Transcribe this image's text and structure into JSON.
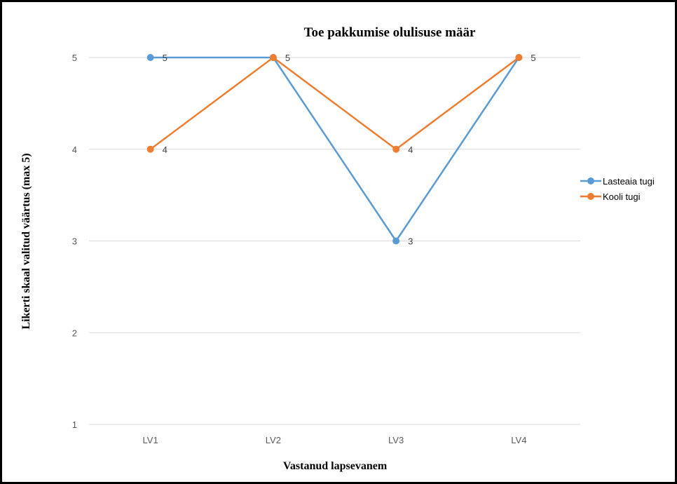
{
  "chart_data": {
    "type": "line",
    "title": "Toe pakkumise olulisuse määr",
    "xlabel": "Vastanud lapsevanem",
    "ylabel": "Likerti skaal valitud väärtus (max 5)",
    "categories": [
      "LV1",
      "LV2",
      "LV3",
      "LV4"
    ],
    "ylim": [
      1,
      5
    ],
    "yticks": [
      1,
      2,
      3,
      4,
      5
    ],
    "grid": true,
    "legend_position": "right",
    "series": [
      {
        "name": "Lasteaia tugi",
        "color": "#5b9bd5",
        "values": [
          5,
          5,
          3,
          5
        ],
        "labels": [
          "5",
          "",
          "3",
          "5"
        ]
      },
      {
        "name": "Kooli tugi",
        "color": "#ed7d31",
        "values": [
          4,
          5,
          4,
          5
        ],
        "labels": [
          "4",
          "5",
          "4",
          ""
        ]
      }
    ]
  }
}
